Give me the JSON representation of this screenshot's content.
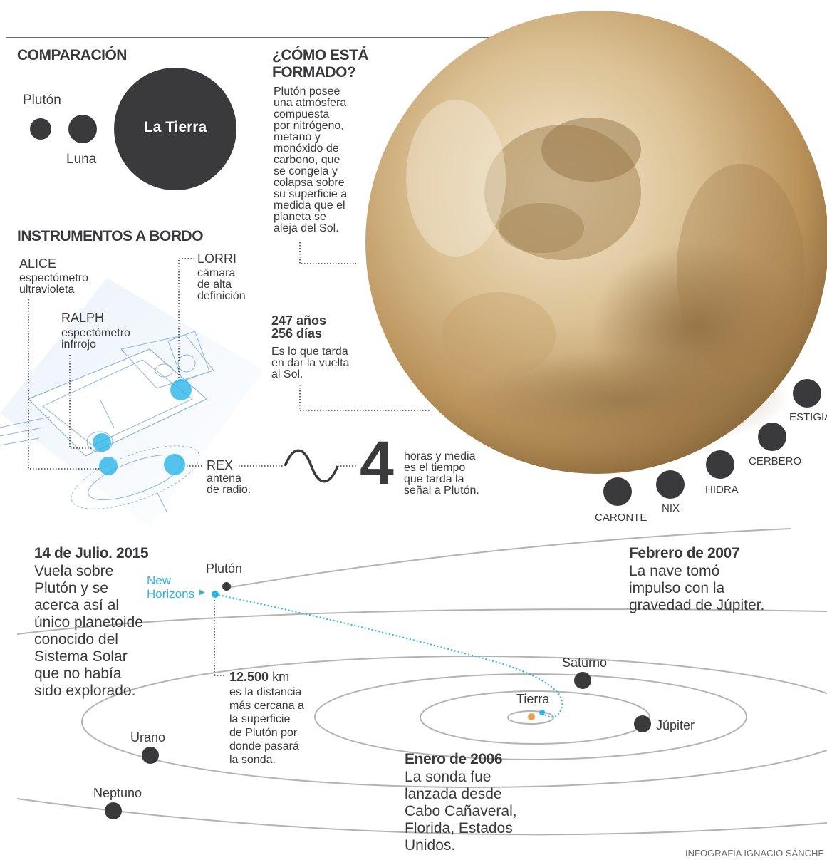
{
  "comparison": {
    "title": "COMPARACIÓN",
    "pluto_label": "Plutón",
    "moon_label": "Luna",
    "earth_label": "La Tierra"
  },
  "formation": {
    "title": "¿CÓMO ESTÁ\nFORMADO?",
    "text": "Plutón posee\nuna atmósfera\ncompuesta\npor nitrógeno,\nmetano y\nmonóxido de\ncarbono, que\nse congela y\ncolapsa sobre\nsu superficie a\nmedida que el\nplaneta se\naleja del Sol."
  },
  "orbit_period": {
    "value": "247 años\n256 días",
    "text": "Es lo que tarda\nen dar la vuelta\nal Sol."
  },
  "instruments": {
    "title": "INSTRUMENTOS A BORDO",
    "alice": {
      "name": "ALICE",
      "desc": "espectómetro\nultravioleta"
    },
    "ralph": {
      "name": "RALPH",
      "desc": "espectómetro\ninfrrojo"
    },
    "lorri": {
      "name": "LORRI",
      "desc": "cámara\nde alta\ndefinición"
    },
    "rex": {
      "name": "REX",
      "desc": "antena\nde radio."
    }
  },
  "signal": {
    "number": "4",
    "text": "horas y media\nes el tiempo\nque tarda la\nseñal a Plutón."
  },
  "moons": [
    "CARONTE",
    "NIX",
    "HIDRA",
    "CERBERO",
    "ESTIGIA"
  ],
  "timeline": {
    "july_2015": {
      "title": "14 de Julio. 2015",
      "text": "Vuela sobre\nPlutón y se\nacerca así al\núnico planetoide\nconocido del\nSistema Solar\nque no había\nsido explorado."
    },
    "feb_2007": {
      "title": "Febrero de 2007",
      "text": "La nave tomó\nimpulso con la\ngravedad de Júpiter."
    },
    "jan_2006": {
      "title": "Enero de 2006",
      "text": "La sonda fue\nlanzada desde\nCabo Cañaveral,\nFlorida, Estados\nUnidos."
    }
  },
  "closest": {
    "value": "12.500",
    "unit": " km",
    "text": "es la distancia\nmás cercana a\nla superficie\nde Plutón por\ndonde pasará\nla sonda."
  },
  "solar_system": {
    "probe_label": "New\nHorizons",
    "pluto": "Plutón",
    "saturn": "Saturno",
    "earth": "Tierra",
    "jupiter": "Júpiter",
    "uranus": "Urano",
    "neptune": "Neptuno"
  },
  "credit": "INFOGRAFÍA IGNACIO SÁNCHE",
  "colors": {
    "dark": "#3a3a3c",
    "accent": "#29b5e8",
    "sun": "#f39a4a",
    "pluto_tone": "#c7a46a"
  }
}
